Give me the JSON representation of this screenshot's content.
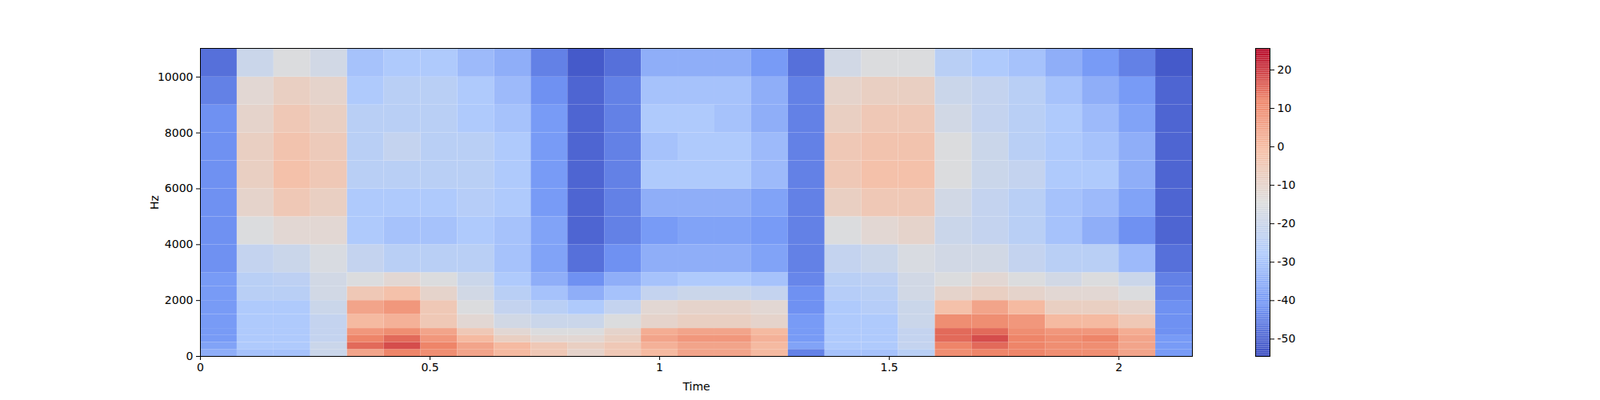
{
  "chart_data": {
    "type": "heatmap",
    "x_label": "Time",
    "y_label": "Hz",
    "xlim": [
      0,
      2.16
    ],
    "ylim": [
      0,
      11025
    ],
    "xticks": [
      0,
      0.5,
      1,
      1.5,
      2
    ],
    "yticks": [
      0,
      2000,
      4000,
      6000,
      8000,
      10000
    ],
    "color": "coolwarm",
    "x_edges": [
      0,
      0.08,
      0.16,
      0.24,
      0.32,
      0.4,
      0.48,
      0.56,
      0.64,
      0.72,
      0.8,
      0.88,
      0.96,
      1.04,
      1.12,
      1.2,
      1.28,
      1.36,
      1.44,
      1.52,
      1.6,
      1.68,
      1.76,
      1.84,
      1.92,
      2.0,
      2.08,
      2.16
    ],
    "y_edges": [
      0,
      250,
      500,
      750,
      1000,
      1500,
      2000,
      2500,
      3000,
      4000,
      5000,
      6000,
      7000,
      8000,
      9000,
      10000,
      11025
    ],
    "values": [
      [
        -35,
        -30,
        -30,
        -20,
        5,
        12,
        10,
        5,
        0,
        -5,
        -10,
        -5,
        0,
        5,
        5,
        0,
        -45,
        -30,
        -30,
        -25,
        10,
        12,
        12,
        10,
        10,
        5,
        -40
      ],
      [
        -38,
        -28,
        -28,
        -20,
        15,
        18,
        12,
        5,
        0,
        -5,
        -8,
        -5,
        2,
        5,
        5,
        0,
        -38,
        -28,
        -28,
        -22,
        12,
        15,
        12,
        10,
        10,
        5,
        -40
      ],
      [
        -40,
        -28,
        -28,
        -22,
        12,
        15,
        8,
        0,
        -8,
        -12,
        -12,
        -8,
        5,
        8,
        8,
        2,
        -40,
        -28,
        -28,
        -22,
        15,
        18,
        12,
        10,
        12,
        5,
        -40
      ],
      [
        -40,
        -28,
        -28,
        -22,
        8,
        10,
        5,
        -5,
        -12,
        -15,
        -15,
        -10,
        3,
        5,
        5,
        0,
        -40,
        -28,
        -28,
        -22,
        15,
        15,
        10,
        8,
        8,
        3,
        -42
      ],
      [
        -40,
        -28,
        -28,
        -22,
        0,
        2,
        -5,
        -12,
        -18,
        -20,
        -20,
        -15,
        -10,
        -8,
        -8,
        -10,
        -40,
        -28,
        -28,
        -20,
        10,
        10,
        8,
        0,
        0,
        -5,
        -42
      ],
      [
        -40,
        -28,
        -28,
        -20,
        5,
        8,
        -5,
        -15,
        -22,
        -25,
        -28,
        -22,
        -12,
        -10,
        -10,
        -12,
        -42,
        -28,
        -26,
        -20,
        -2,
        5,
        0,
        -8,
        -8,
        -10,
        -42
      ],
      [
        -40,
        -25,
        -25,
        -18,
        -5,
        -2,
        -10,
        -18,
        -25,
        -30,
        -35,
        -30,
        -22,
        -20,
        -20,
        -22,
        -42,
        -26,
        -25,
        -18,
        -10,
        -8,
        -10,
        -12,
        -12,
        -15,
        -44
      ],
      [
        -40,
        -25,
        -24,
        -18,
        -15,
        -12,
        -15,
        -20,
        -28,
        -35,
        -42,
        -35,
        -30,
        -28,
        -28,
        -30,
        -44,
        -25,
        -24,
        -18,
        -15,
        -12,
        -15,
        -18,
        -15,
        -20,
        -45
      ],
      [
        -42,
        -22,
        -20,
        -16,
        -22,
        -25,
        -25,
        -25,
        -30,
        -38,
        -48,
        -42,
        -35,
        -35,
        -35,
        -38,
        -45,
        -22,
        -20,
        -16,
        -18,
        -18,
        -22,
        -25,
        -25,
        -32,
        -48
      ],
      [
        -42,
        -15,
        -12,
        -12,
        -28,
        -30,
        -30,
        -28,
        -30,
        -38,
        -50,
        -45,
        -40,
        -38,
        -38,
        -40,
        -45,
        -15,
        -12,
        -10,
        -20,
        -22,
        -25,
        -30,
        -35,
        -42,
        -50
      ],
      [
        -42,
        -10,
        -5,
        -8,
        -28,
        -28,
        -28,
        -26,
        -28,
        -40,
        -50,
        -45,
        -35,
        -35,
        -35,
        -38,
        -45,
        -8,
        -5,
        -5,
        -18,
        -22,
        -25,
        -30,
        -32,
        -38,
        -50
      ],
      [
        -42,
        -8,
        -2,
        -5,
        -25,
        -25,
        -25,
        -25,
        -28,
        -40,
        -50,
        -45,
        -28,
        -28,
        -28,
        -32,
        -45,
        -5,
        -2,
        -2,
        -15,
        -20,
        -22,
        -28,
        -28,
        -35,
        -50
      ],
      [
        -42,
        -8,
        -3,
        -6,
        -25,
        -22,
        -25,
        -25,
        -28,
        -40,
        -50,
        -45,
        -30,
        -28,
        -28,
        -32,
        -45,
        -5,
        -3,
        -3,
        -15,
        -20,
        -25,
        -28,
        -30,
        -35,
        -50
      ],
      [
        -42,
        -10,
        -5,
        -8,
        -25,
        -25,
        -25,
        -28,
        -30,
        -40,
        -50,
        -45,
        -28,
        -28,
        -30,
        -35,
        -45,
        -8,
        -5,
        -5,
        -18,
        -22,
        -25,
        -28,
        -32,
        -38,
        -50
      ],
      [
        -45,
        -12,
        -8,
        -10,
        -28,
        -25,
        -25,
        -28,
        -32,
        -42,
        -50,
        -45,
        -30,
        -30,
        -30,
        -35,
        -45,
        -10,
        -8,
        -8,
        -20,
        -22,
        -25,
        -30,
        -35,
        -40,
        -50
      ],
      [
        -48,
        -20,
        -15,
        -18,
        -30,
        -28,
        -28,
        -32,
        -35,
        -45,
        -52,
        -48,
        -35,
        -35,
        -35,
        -40,
        -48,
        -18,
        -15,
        -15,
        -25,
        -28,
        -30,
        -35,
        -40,
        -45,
        -52
      ]
    ],
    "colorbar_range": [
      -54.5,
      25.6
    ],
    "colorbar_ticks": [
      -50,
      -40,
      -30,
      -20,
      -10,
      0,
      10,
      20
    ]
  }
}
